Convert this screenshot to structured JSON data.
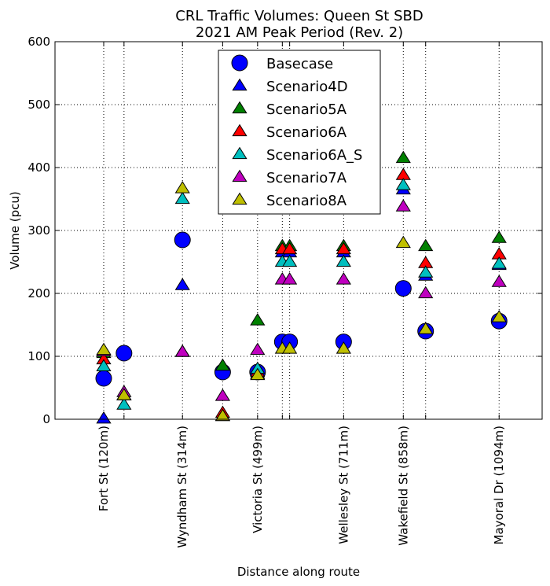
{
  "chart_data": {
    "type": "scatter",
    "title_line1": "CRL Traffic Volumes: Queen St SBD",
    "title_line2": "2021 AM Peak Period (Rev. 2)",
    "xlabel": "Distance along route",
    "ylabel": "Volume (pcu)",
    "ylim": [
      0,
      600
    ],
    "yticks": [
      "0",
      "100",
      "200",
      "300",
      "400",
      "500",
      "600"
    ],
    "xlim": [
      0,
      1200
    ],
    "grid": true,
    "legend_position": "top-center",
    "positions": [
      120,
      170,
      314,
      413,
      499,
      560,
      578,
      711,
      858,
      913,
      1094
    ],
    "tick_labels": [
      "Fort St (120m)",
      "",
      "Wyndham St (314m)",
      "",
      "Victoria St (499m)",
      "",
      "",
      "Wellesley St (711m)",
      "Wakefield St (858m)",
      "",
      "Mayoral Dr (1094m)"
    ],
    "series": [
      {
        "name": "Basecase",
        "marker": "circle",
        "color": "#0000ff",
        "values": [
          65,
          105,
          285,
          75,
          75,
          123,
          123,
          123,
          208,
          140,
          156
        ]
      },
      {
        "name": "Scenario4D",
        "marker": "triangle",
        "color": "#0000ff",
        "values": [
          1,
          38,
          213,
          5,
          72,
          265,
          265,
          265,
          365,
          228,
          245
        ]
      },
      {
        "name": "Scenario5A",
        "marker": "triangle",
        "color": "#008000",
        "values": [
          105,
          38,
          107,
          85,
          157,
          275,
          275,
          275,
          415,
          275,
          288
        ]
      },
      {
        "name": "Scenario6A",
        "marker": "triangle",
        "color": "#ff0000",
        "values": [
          95,
          38,
          107,
          10,
          75,
          270,
          270,
          270,
          388,
          248,
          262
        ]
      },
      {
        "name": "Scenario6A_S",
        "marker": "triangle",
        "color": "#00bfbf",
        "values": [
          84,
          23,
          350,
          5,
          80,
          250,
          250,
          250,
          372,
          233,
          247
        ]
      },
      {
        "name": "Scenario7A",
        "marker": "triangle",
        "color": "#bf00bf",
        "values": [
          108,
          43,
          107,
          37,
          110,
          222,
          222,
          222,
          338,
          200,
          218
        ]
      },
      {
        "name": "Scenario8A",
        "marker": "triangle",
        "color": "#bfbf00",
        "values": [
          110,
          38,
          367,
          5,
          70,
          112,
          112,
          112,
          280,
          143,
          162
        ]
      }
    ]
  }
}
